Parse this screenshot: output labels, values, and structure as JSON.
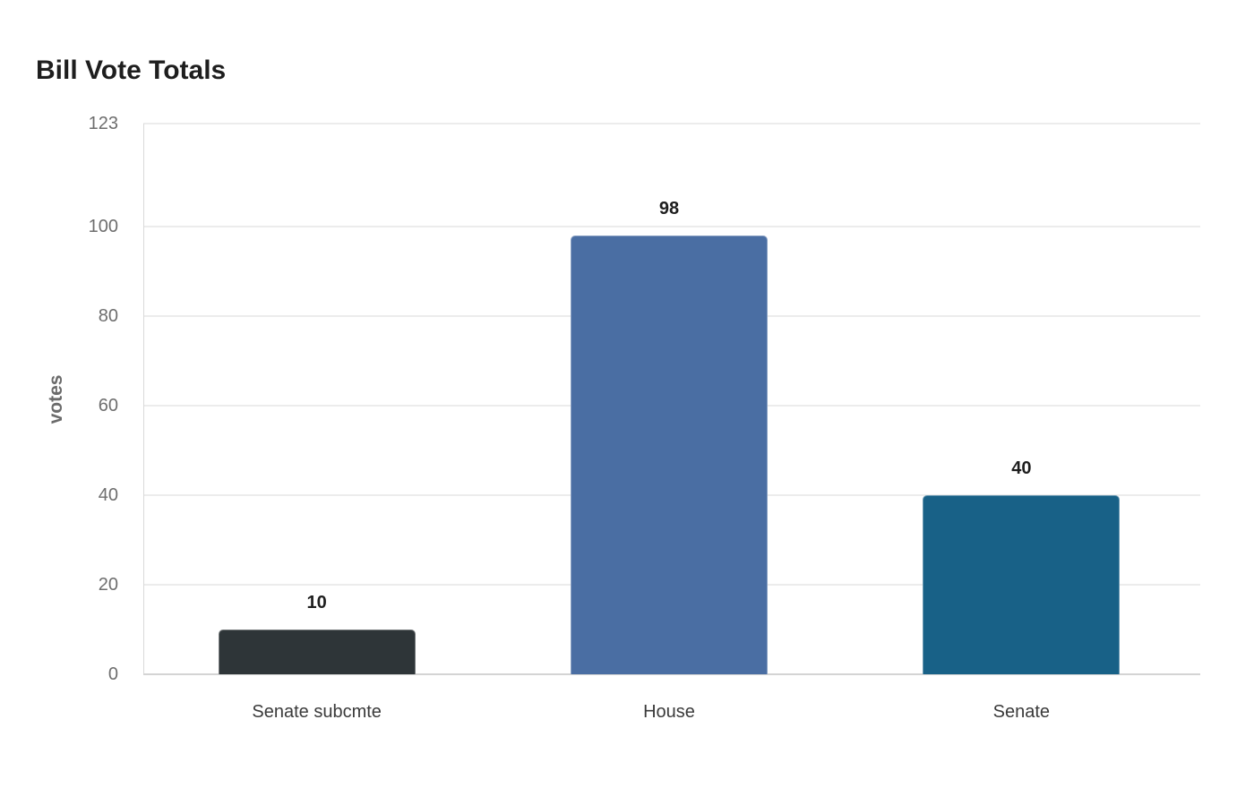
{
  "title": "Bill Vote Totals",
  "colors": {
    "senate_subcmte": "#2e3538",
    "house": "#4a6ea3",
    "senate": "#186187",
    "grid": "#ececec",
    "axis_text": "#6e6e6e"
  },
  "chart_data": {
    "type": "bar",
    "title": "Bill Vote Totals",
    "xlabel": "",
    "ylabel": "votes",
    "categories": [
      "Senate subcmte",
      "House",
      "Senate"
    ],
    "values": [
      10,
      98,
      40
    ],
    "data_labels": [
      "10",
      "98",
      "40"
    ],
    "ylim": [
      0,
      123
    ],
    "yticks": [
      0,
      20,
      40,
      60,
      80,
      100,
      123
    ],
    "ytick_labels": [
      "0",
      "20",
      "40",
      "60",
      "80",
      "100",
      "123"
    ],
    "grid": true,
    "legend": null,
    "bar_colors": [
      "#2e3538",
      "#4a6ea3",
      "#186187"
    ]
  }
}
